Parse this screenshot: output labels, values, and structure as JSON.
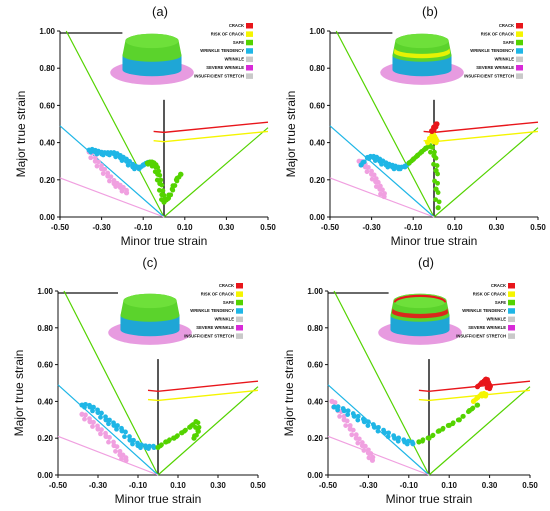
{
  "figure": {
    "legend_entries": [
      {
        "label": "CRACK",
        "color": "#e8161b"
      },
      {
        "label": "RISK OF CRACK",
        "color": "#f5f500"
      },
      {
        "label": "SAFE",
        "color": "#54d300"
      },
      {
        "label": "WRINKLE TENDENCY",
        "color": "#1fb6e6"
      },
      {
        "label": "WRINKLE",
        "color": "#c9c9c9"
      },
      {
        "label": "SEVERE WRINKLE",
        "color": "#d82ad8"
      },
      {
        "label": "INSUFFICIENT STRETCH",
        "color": "#c9c9c9"
      }
    ],
    "colors": {
      "crack": "#e8161b",
      "risk": "#f5f500",
      "safe": "#54d300",
      "wrinkle_tendency": "#1fb6e6",
      "pink": "#f0a0e0",
      "fld": "#e8161b",
      "fld_offset": "#f5f500",
      "safe_lines": "#54d300",
      "cyan_line": "#1fb6e6",
      "pink_line": "#f0a0e0",
      "part_top": "#5bd32c",
      "part_band": "#1fa6d6",
      "part_flange": "#e79be0"
    }
  },
  "chart_data": [
    {
      "panel": "(a)",
      "type": "scatter",
      "xlabel": "Minor true strain",
      "ylabel": "Major true strain",
      "xlim": [
        -0.5,
        0.5
      ],
      "ylim": [
        0.0,
        1.0
      ],
      "xticks": [
        "-0.50",
        "-0.30",
        "-0.10",
        "0.10",
        "0.30",
        "0.50"
      ],
      "yticks": [
        "0.00",
        "0.20",
        "0.40",
        "0.60",
        "0.80",
        "1.00"
      ],
      "series": [
        {
          "color_key": "pink",
          "points": [
            [
              -0.36,
              0.35
            ],
            [
              -0.33,
              0.3
            ],
            [
              -0.3,
              0.26
            ],
            [
              -0.27,
              0.22
            ],
            [
              -0.24,
              0.18
            ],
            [
              -0.21,
              0.16
            ],
            [
              -0.18,
              0.13
            ]
          ]
        },
        {
          "color_key": "wrinkle_tendency",
          "points": [
            [
              -0.36,
              0.36
            ],
            [
              -0.33,
              0.35
            ],
            [
              -0.3,
              0.34
            ],
            [
              -0.27,
              0.34
            ],
            [
              -0.24,
              0.34
            ],
            [
              -0.21,
              0.32
            ],
            [
              -0.18,
              0.3
            ],
            [
              -0.15,
              0.27
            ],
            [
              -0.12,
              0.26
            ],
            [
              -0.1,
              0.28
            ],
            [
              -0.08,
              0.29
            ]
          ]
        },
        {
          "color_key": "safe",
          "points": [
            [
              -0.08,
              0.29
            ],
            [
              -0.06,
              0.29
            ],
            [
              -0.04,
              0.27
            ],
            [
              -0.03,
              0.23
            ],
            [
              -0.02,
              0.18
            ],
            [
              -0.01,
              0.12
            ],
            [
              0.0,
              0.08
            ],
            [
              0.02,
              0.1
            ],
            [
              0.04,
              0.15
            ],
            [
              0.06,
              0.2
            ],
            [
              0.08,
              0.23
            ]
          ]
        }
      ]
    },
    {
      "panel": "(b)",
      "type": "scatter",
      "xlabel": "Minor true strain",
      "ylabel": "Major true strain",
      "xlim": [
        -0.5,
        0.5
      ],
      "ylim": [
        0.0,
        1.0
      ],
      "xticks": [
        "-0.50",
        "-0.30",
        "-0.10",
        "0.10",
        "0.30",
        "0.50"
      ],
      "yticks": [
        "0.00",
        "0.20",
        "0.40",
        "0.60",
        "0.80",
        "1.00"
      ],
      "series": [
        {
          "color_key": "pink",
          "points": [
            [
              -0.36,
              0.3
            ],
            [
              -0.33,
              0.27
            ],
            [
              -0.3,
              0.23
            ],
            [
              -0.28,
              0.19
            ],
            [
              -0.26,
              0.15
            ],
            [
              -0.24,
              0.11
            ]
          ]
        },
        {
          "color_key": "wrinkle_tendency",
          "points": [
            [
              -0.35,
              0.28
            ],
            [
              -0.32,
              0.32
            ],
            [
              -0.29,
              0.32
            ],
            [
              -0.26,
              0.3
            ],
            [
              -0.23,
              0.28
            ],
            [
              -0.2,
              0.27
            ],
            [
              -0.17,
              0.26
            ],
            [
              -0.14,
              0.27
            ],
            [
              -0.12,
              0.29
            ]
          ]
        },
        {
          "color_key": "safe",
          "points": [
            [
              -0.12,
              0.29
            ],
            [
              -0.1,
              0.31
            ],
            [
              -0.08,
              0.33
            ],
            [
              -0.06,
              0.35
            ],
            [
              -0.04,
              0.37
            ],
            [
              -0.02,
              0.38
            ],
            [
              0.0,
              0.33
            ],
            [
              0.01,
              0.25
            ],
            [
              0.01,
              0.15
            ],
            [
              0.02,
              0.05
            ]
          ]
        },
        {
          "color_key": "risk",
          "points": [
            [
              -0.03,
              0.4
            ],
            [
              -0.02,
              0.42
            ],
            [
              -0.01,
              0.44
            ],
            [
              0.0,
              0.42
            ],
            [
              0.01,
              0.4
            ]
          ]
        },
        {
          "color_key": "crack",
          "points": [
            [
              -0.01,
              0.46
            ],
            [
              0.0,
              0.48
            ],
            [
              0.01,
              0.5
            ],
            [
              0.0,
              0.47
            ]
          ]
        }
      ]
    },
    {
      "panel": "(c)",
      "type": "scatter",
      "xlabel": "Minor true strain",
      "ylabel": "Major true strain",
      "xlim": [
        -0.5,
        0.5
      ],
      "ylim": [
        0.0,
        1.0
      ],
      "xticks": [
        "-0.50",
        "-0.30",
        "-0.10",
        "0.10",
        "0.30",
        "0.50"
      ],
      "yticks": [
        "0.00",
        "0.20",
        "0.40",
        "0.60",
        "0.80",
        "1.00"
      ],
      "series": [
        {
          "color_key": "pink",
          "points": [
            [
              -0.38,
              0.33
            ],
            [
              -0.34,
              0.29
            ],
            [
              -0.3,
              0.25
            ],
            [
              -0.26,
              0.21
            ],
            [
              -0.22,
              0.16
            ],
            [
              -0.19,
              0.11
            ],
            [
              -0.16,
              0.08
            ]
          ]
        },
        {
          "color_key": "wrinkle_tendency",
          "points": [
            [
              -0.38,
              0.38
            ],
            [
              -0.34,
              0.37
            ],
            [
              -0.3,
              0.34
            ],
            [
              -0.26,
              0.3
            ],
            [
              -0.22,
              0.27
            ],
            [
              -0.18,
              0.24
            ],
            [
              -0.14,
              0.19
            ],
            [
              -0.1,
              0.16
            ],
            [
              -0.06,
              0.15
            ],
            [
              -0.02,
              0.15
            ]
          ]
        },
        {
          "color_key": "safe",
          "points": [
            [
              0.0,
              0.15
            ],
            [
              0.04,
              0.18
            ],
            [
              0.08,
              0.2
            ],
            [
              0.12,
              0.23
            ],
            [
              0.16,
              0.26
            ],
            [
              0.19,
              0.29
            ],
            [
              0.2,
              0.24
            ],
            [
              0.18,
              0.2
            ]
          ]
        }
      ]
    },
    {
      "panel": "(d)",
      "type": "scatter",
      "xlabel": "Minor true strain",
      "ylabel": "Major true strain",
      "xlim": [
        -0.5,
        0.5
      ],
      "ylim": [
        0.0,
        1.0
      ],
      "xticks": [
        "-0.50",
        "-0.30",
        "-0.10",
        "0.10",
        "0.30",
        "0.50"
      ],
      "yticks": [
        "0.00",
        "0.20",
        "0.40",
        "0.60",
        "0.80",
        "1.00"
      ],
      "series": [
        {
          "color_key": "pink",
          "points": [
            [
              -0.48,
              0.4
            ],
            [
              -0.45,
              0.35
            ],
            [
              -0.42,
              0.3
            ],
            [
              -0.39,
              0.25
            ],
            [
              -0.36,
              0.2
            ],
            [
              -0.33,
              0.16
            ],
            [
              -0.3,
              0.12
            ],
            [
              -0.28,
              0.08
            ]
          ]
        },
        {
          "color_key": "wrinkle_tendency",
          "points": [
            [
              -0.47,
              0.37
            ],
            [
              -0.42,
              0.35
            ],
            [
              -0.37,
              0.32
            ],
            [
              -0.32,
              0.29
            ],
            [
              -0.27,
              0.26
            ],
            [
              -0.22,
              0.23
            ],
            [
              -0.17,
              0.2
            ],
            [
              -0.12,
              0.18
            ],
            [
              -0.08,
              0.17
            ]
          ]
        },
        {
          "color_key": "safe",
          "points": [
            [
              -0.05,
              0.18
            ],
            [
              0.0,
              0.2
            ],
            [
              0.05,
              0.24
            ],
            [
              0.1,
              0.27
            ],
            [
              0.15,
              0.3
            ],
            [
              0.2,
              0.35
            ],
            [
              0.24,
              0.38
            ]
          ]
        },
        {
          "color_key": "risk",
          "points": [
            [
              0.22,
              0.4
            ],
            [
              0.24,
              0.42
            ],
            [
              0.26,
              0.44
            ],
            [
              0.28,
              0.43
            ]
          ]
        },
        {
          "color_key": "crack",
          "points": [
            [
              0.24,
              0.48
            ],
            [
              0.26,
              0.5
            ],
            [
              0.28,
              0.52
            ],
            [
              0.29,
              0.49
            ],
            [
              0.3,
              0.47
            ]
          ]
        }
      ]
    }
  ]
}
